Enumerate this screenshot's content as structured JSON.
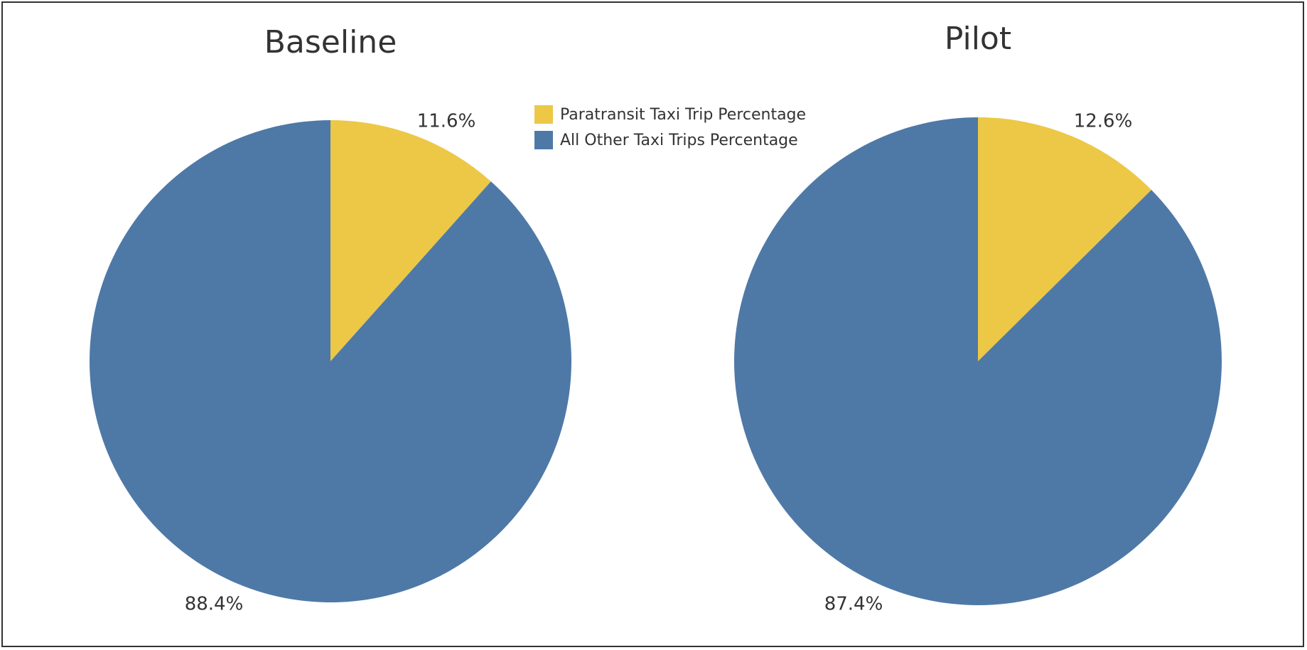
{
  "legend": {
    "items": [
      {
        "label": "Paratransit Taxi Trip Percentage",
        "color": "#ECC846"
      },
      {
        "label": "All Other Taxi Trips Percentage",
        "color": "#4E79A7"
      }
    ]
  },
  "chart_data": [
    {
      "type": "pie",
      "title": "Baseline",
      "categories": [
        "Paratransit Taxi Trip Percentage",
        "All Other Taxi Trips Percentage"
      ],
      "values": [
        11.6,
        88.4
      ],
      "labels": [
        "11.6%",
        "88.4%"
      ],
      "colors": [
        "#ECC846",
        "#4E79A7"
      ]
    },
    {
      "type": "pie",
      "title": "Pilot",
      "categories": [
        "Paratransit Taxi Trip Percentage",
        "All Other Taxi Trips Percentage"
      ],
      "values": [
        12.6,
        87.4
      ],
      "labels": [
        "12.6%",
        "87.4%"
      ],
      "colors": [
        "#ECC846",
        "#4E79A7"
      ]
    }
  ]
}
